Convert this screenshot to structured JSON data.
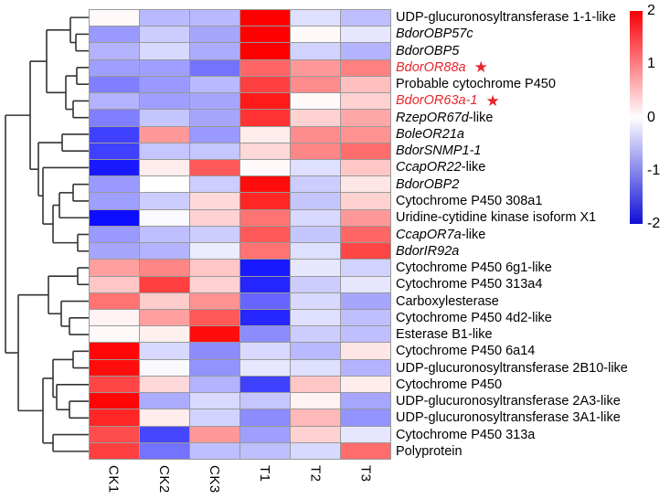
{
  "figure": {
    "type": "clustered-heatmap",
    "colors": {
      "heat_positive_max": "#ff0000",
      "heat_zero": "#ffffff",
      "heat_negative_max": "#0f0fd8",
      "grid_line": "#999999",
      "dendrogram_line": "#333333",
      "highlight_label": "#e8252b"
    }
  },
  "chart_data": {
    "type": "heatmap",
    "columns": [
      "CK1",
      "CK2",
      "CK3",
      "T1",
      "T2",
      "T3"
    ],
    "value_range": [
      -2,
      2
    ],
    "rows": [
      {
        "em": "",
        "rest": "UDP-glucuronosyltransferase 1-1-like",
        "highlight": false,
        "star": false,
        "values": [
          0.05,
          -0.55,
          -0.55,
          2.0,
          -0.25,
          -0.5
        ]
      },
      {
        "em": "BdorOBP57c",
        "rest": "",
        "highlight": false,
        "star": false,
        "values": [
          -0.8,
          -0.4,
          -0.7,
          2.0,
          0.05,
          -0.2
        ]
      },
      {
        "em": "BdorOBP5",
        "rest": "",
        "highlight": false,
        "star": false,
        "values": [
          -0.6,
          -0.3,
          -0.65,
          2.0,
          -0.35,
          -0.6
        ]
      },
      {
        "em": "BdorOR88a",
        "rest": "",
        "highlight": true,
        "star": true,
        "values": [
          -0.75,
          -0.75,
          -1.1,
          1.2,
          0.8,
          1.0
        ]
      },
      {
        "em": "",
        "rest": "Probable cytochrome P450",
        "highlight": false,
        "star": false,
        "values": [
          -1.0,
          -0.8,
          -0.55,
          1.5,
          0.9,
          0.5
        ]
      },
      {
        "em": "BdorOR63a-1",
        "rest": "",
        "highlight": true,
        "star": true,
        "values": [
          -0.6,
          -0.75,
          -0.7,
          1.8,
          0.05,
          0.35
        ]
      },
      {
        "em": "RzepOR67d",
        "rest": "-like",
        "highlight": false,
        "star": false,
        "values": [
          -1.0,
          -0.45,
          -0.7,
          1.6,
          0.35,
          0.7
        ]
      },
      {
        "em": "BoleOR21a",
        "rest": "",
        "highlight": false,
        "star": false,
        "values": [
          -1.5,
          0.8,
          -0.8,
          0.15,
          0.9,
          0.85
        ]
      },
      {
        "em": "BdorSNMP1-1",
        "rest": "",
        "highlight": false,
        "star": false,
        "values": [
          -1.5,
          -0.45,
          -0.45,
          0.3,
          0.95,
          1.15
        ]
      },
      {
        "em": "CcapOR22",
        "rest": "-like",
        "highlight": false,
        "star": false,
        "values": [
          -1.8,
          0.15,
          1.3,
          0.05,
          -0.25,
          0.45
        ]
      },
      {
        "em": "BdorOBP2",
        "rest": "",
        "highlight": false,
        "star": false,
        "values": [
          -0.8,
          0.0,
          -0.4,
          1.9,
          -0.4,
          0.2
        ]
      },
      {
        "em": "",
        "rest": "Cytochrome P450 308a1",
        "highlight": false,
        "star": false,
        "values": [
          -0.75,
          -0.4,
          0.3,
          1.7,
          -0.45,
          0.35
        ]
      },
      {
        "em": "",
        "rest": "Uridine-cytidine kinase isoform X1",
        "highlight": false,
        "star": false,
        "values": [
          -1.9,
          -0.05,
          0.35,
          1.1,
          -0.3,
          0.8
        ]
      },
      {
        "em": "CcapOR7a",
        "rest": "-like",
        "highlight": false,
        "star": false,
        "values": [
          -0.8,
          -0.5,
          -0.4,
          1.3,
          -0.45,
          1.2
        ]
      },
      {
        "em": "BdorIR92a",
        "rest": "",
        "highlight": false,
        "star": false,
        "values": [
          -0.7,
          -0.6,
          -0.15,
          1.1,
          -0.25,
          1.45
        ]
      },
      {
        "em": "",
        "rest": "Cytochrome P450 6g1-like",
        "highlight": false,
        "star": false,
        "values": [
          0.75,
          0.95,
          0.45,
          -1.8,
          -0.2,
          -0.35
        ]
      },
      {
        "em": "",
        "rest": "Cytochrome P450 313a4",
        "highlight": false,
        "star": false,
        "values": [
          0.45,
          1.5,
          0.35,
          -1.7,
          -0.4,
          -0.2
        ]
      },
      {
        "em": "",
        "rest": "Carboxylesterase",
        "highlight": false,
        "star": false,
        "values": [
          1.1,
          0.4,
          0.85,
          -1.2,
          -0.3,
          -0.7
        ]
      },
      {
        "em": "",
        "rest": "Cytochrome P450 4d2-like",
        "highlight": false,
        "star": false,
        "values": [
          0.1,
          0.75,
          1.3,
          -1.7,
          -0.25,
          -0.5
        ]
      },
      {
        "em": "",
        "rest": "Esterase B1-like",
        "highlight": false,
        "star": false,
        "values": [
          0.05,
          0.12,
          1.9,
          -0.9,
          -0.4,
          -0.5
        ]
      },
      {
        "em": "",
        "rest": "Cytochrome P450 6a14",
        "highlight": false,
        "star": false,
        "values": [
          1.95,
          -0.3,
          -0.9,
          -0.3,
          -0.55,
          0.2
        ]
      },
      {
        "em": "",
        "rest": "UDP-glucuronosyltransferase 2B10-like",
        "highlight": false,
        "star": false,
        "values": [
          1.9,
          -0.05,
          -0.85,
          -0.2,
          -0.25,
          -0.6
        ]
      },
      {
        "em": "",
        "rest": "Cytochrome P450",
        "highlight": false,
        "star": false,
        "values": [
          1.45,
          0.3,
          -0.6,
          -1.5,
          0.45,
          0.15
        ]
      },
      {
        "em": "",
        "rest": "UDP-glucuronosyltransferase 2A3-like",
        "highlight": false,
        "star": false,
        "values": [
          1.95,
          -0.65,
          -0.3,
          -0.45,
          0.1,
          -0.7
        ]
      },
      {
        "em": "",
        "rest": "UDP-glucuronosyltransferase 3A1-like",
        "highlight": false,
        "star": false,
        "values": [
          1.7,
          0.15,
          -0.35,
          -0.9,
          0.55,
          -0.85
        ]
      },
      {
        "em": "",
        "rest": "Cytochrome P450 313a",
        "highlight": false,
        "star": false,
        "values": [
          1.4,
          -1.45,
          0.8,
          -0.75,
          0.35,
          -0.2
        ]
      },
      {
        "em": "",
        "rest": "Polyprotein",
        "highlight": false,
        "star": false,
        "values": [
          1.5,
          -1.1,
          -0.5,
          -0.5,
          -0.3,
          1.15
        ]
      }
    ],
    "colorscale": {
      "min": -2,
      "max": 2,
      "ticks": [
        "2",
        "1",
        "0",
        "-1",
        "-2"
      ],
      "gradient": [
        "#f80008",
        "#ffffff",
        "#0f0fd8"
      ],
      "position": "right"
    },
    "dendrogram_tree": {
      "x": 6,
      "children": [
        {
          "x": 33,
          "children": [
            {
              "x": 51,
              "children": [
                {
                  "x": 77,
                  "children": [
                    {
                      "leaf": 0
                    },
                    {
                      "x": 83,
                      "children": [
                        {
                          "leaf": 1
                        },
                        {
                          "leaf": 2
                        }
                      ]
                    }
                  ]
                },
                {
                  "x": 72,
                  "children": [
                    {
                      "x": 84,
                      "children": [
                        {
                          "leaf": 3
                        },
                        {
                          "leaf": 4
                        }
                      ]
                    },
                    {
                      "x": 80,
                      "children": [
                        {
                          "leaf": 5
                        },
                        {
                          "leaf": 6
                        }
                      ]
                    }
                  ]
                }
              ]
            },
            {
              "x": 42,
              "children": [
                {
                  "x": 68,
                  "children": [
                    {
                      "leaf": 7
                    },
                    {
                      "leaf": 8
                    }
                  ]
                },
                {
                  "x": 47,
                  "children": [
                    {
                      "leaf": 9
                    },
                    {
                      "x": 58,
                      "children": [
                        {
                          "x": 65,
                          "children": [
                            {
                              "x": 80,
                              "children": [
                                {
                                  "leaf": 10
                                },
                                {
                                  "leaf": 11
                                }
                              ]
                            },
                            {
                              "leaf": 12
                            }
                          ]
                        },
                        {
                          "x": 85,
                          "children": [
                            {
                              "leaf": 13
                            },
                            {
                              "leaf": 14
                            }
                          ]
                        }
                      ]
                    }
                  ]
                }
              ]
            }
          ]
        },
        {
          "x": 20,
          "children": [
            {
              "x": 53,
              "children": [
                {
                  "x": 85,
                  "children": [
                    {
                      "leaf": 15
                    },
                    {
                      "leaf": 16
                    }
                  ]
                },
                {
                  "x": 67,
                  "children": [
                    {
                      "leaf": 17
                    },
                    {
                      "x": 76,
                      "children": [
                        {
                          "leaf": 18
                        },
                        {
                          "leaf": 19
                        }
                      ]
                    }
                  ]
                }
              ]
            },
            {
              "x": 47,
              "children": [
                {
                  "x": 58,
                  "children": [
                    {
                      "x": 80,
                      "children": [
                        {
                          "leaf": 20
                        },
                        {
                          "leaf": 21
                        }
                      ]
                    },
                    {
                      "x": 62,
                      "children": [
                        {
                          "leaf": 22
                        },
                        {
                          "x": 76,
                          "children": [
                            {
                              "leaf": 23
                            },
                            {
                              "leaf": 24
                            }
                          ]
                        }
                      ]
                    }
                  ]
                },
                {
                  "x": 58,
                  "children": [
                    {
                      "leaf": 25
                    },
                    {
                      "leaf": 26
                    }
                  ]
                }
              ]
            }
          ]
        }
      ]
    }
  }
}
